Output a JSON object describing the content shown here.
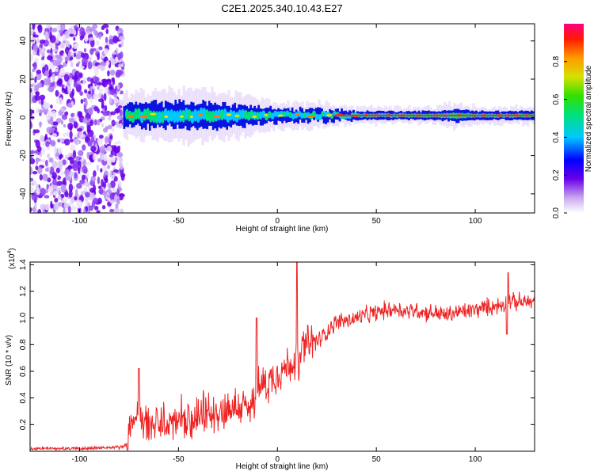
{
  "chart_data": [
    {
      "type": "heatmap",
      "title": "C2E1.2025.340.10.43.E27",
      "xlabel": "Height of straight line (km)",
      "ylabel": "Frequency (Hz)",
      "xlim": [
        -125,
        130
      ],
      "ylim": [
        -50,
        49
      ],
      "x_ticks": [
        -100,
        -50,
        0,
        50,
        100
      ],
      "y_ticks": [
        -40,
        -20,
        0,
        20,
        40
      ],
      "noise_region_x": [
        -125,
        -78
      ],
      "band_center_hz": 1,
      "band_halfwidth_profile": {
        "x": [
          -78,
          -60,
          -40,
          -20,
          0,
          20,
          40,
          60,
          80,
          90,
          100,
          130
        ],
        "halfwidth_hz": [
          5,
          6,
          6,
          5,
          3,
          3,
          2,
          2,
          2,
          3,
          2,
          2
        ]
      },
      "colorbar": {
        "label": "Normalized spectral amplitude",
        "range": [
          0,
          1
        ],
        "ticks": [
          0.0,
          0.2,
          0.4,
          0.6,
          0.8
        ]
      }
    },
    {
      "type": "line",
      "xlabel": "Height of straight line (km)",
      "ylabel": "SNR (10 * v/v)",
      "y_scale_note": "(x10",
      "y_scale_exp": "4",
      "xlim": [
        -125,
        130
      ],
      "ylim": [
        0,
        1.42
      ],
      "x_ticks": [
        -100,
        -50,
        0,
        50,
        100
      ],
      "y_ticks": [
        0.2,
        0.4,
        0.6,
        0.8,
        1.0,
        1.2,
        1.4
      ],
      "line_color": "#ee2222",
      "series": [
        {
          "name": "SNR",
          "x": [
            -125,
            -100,
            -80,
            -76,
            -74,
            -72,
            -70,
            -68,
            -66,
            -64,
            -60,
            -56,
            -52,
            -48,
            -44,
            -40,
            -36,
            -32,
            -28,
            -24,
            -20,
            -16,
            -14,
            -12,
            -10,
            -8,
            -4,
            0,
            4,
            8,
            9,
            10,
            11,
            12,
            16,
            20,
            24,
            28,
            32,
            36,
            40,
            45,
            50,
            55,
            60,
            65,
            70,
            75,
            80,
            85,
            90,
            95,
            100,
            105,
            110,
            114,
            116,
            117,
            118,
            120,
            125,
            130
          ],
          "y": [
            0.02,
            0.02,
            0.03,
            0.05,
            0.15,
            0.22,
            0.28,
            0.25,
            0.22,
            0.18,
            0.2,
            0.2,
            0.22,
            0.24,
            0.18,
            0.25,
            0.28,
            0.3,
            0.3,
            0.32,
            0.34,
            0.32,
            0.3,
            0.4,
            0.45,
            0.5,
            0.52,
            0.6,
            0.62,
            0.68,
            0.72,
            0.75,
            0.55,
            0.78,
            0.8,
            0.82,
            0.88,
            0.95,
            0.98,
            0.98,
            1.0,
            1.02,
            1.04,
            1.06,
            1.07,
            1.05,
            1.06,
            1.04,
            1.04,
            1.02,
            1.04,
            1.05,
            1.06,
            1.08,
            1.09,
            1.1,
            1.12,
            1.15,
            1.12,
            1.12,
            1.12,
            1.12
          ]
        }
      ]
    }
  ]
}
